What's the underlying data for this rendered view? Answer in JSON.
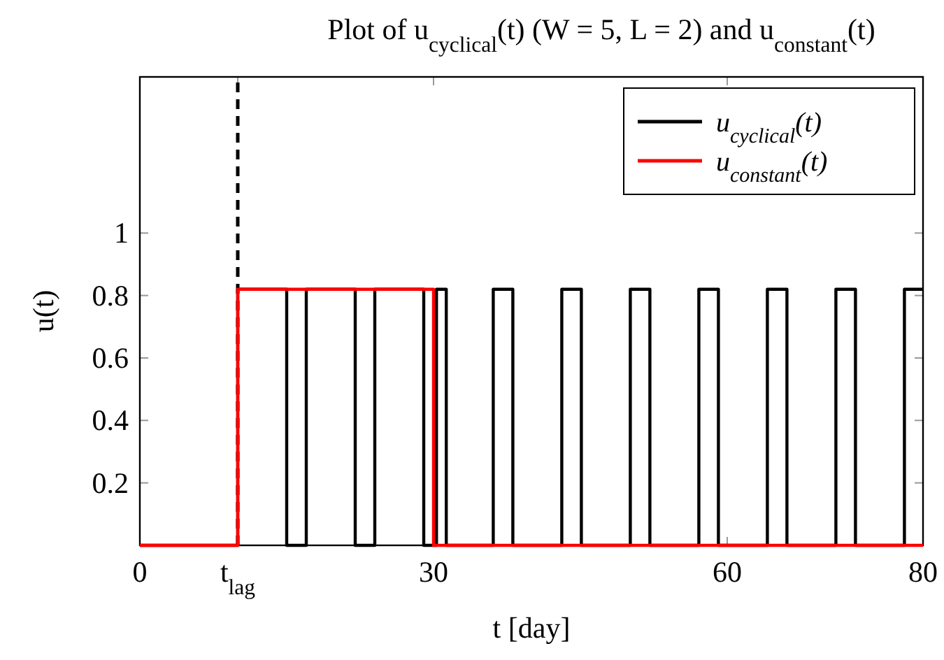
{
  "chart_data": {
    "type": "step",
    "title": "Plot of u$_{cyclical}$(t) (W = 5, L = 2) and u$_{constant}$(t)",
    "xlabel": "t [day]",
    "ylabel": "u(t)",
    "xlim": [
      0,
      80
    ],
    "ylim": [
      0,
      1.5
    ],
    "xticks": [
      0,
      {
        "value": 10,
        "label": "t$_{lag}$"
      },
      30,
      60,
      80
    ],
    "yticks": [
      0.2,
      0.4,
      0.6,
      0.8,
      1
    ],
    "series": [
      {
        "name": "u$_{cyclical}$(t)",
        "color": "#000000",
        "x": [
          0,
          10,
          15,
          17,
          22,
          24,
          29,
          30.3,
          31.3,
          36.1,
          38.1,
          43.1,
          45.1,
          50.1,
          52.1,
          57.1,
          59.1,
          64.1,
          66.1,
          71.1,
          73.1,
          78.1,
          80
        ],
        "values": [
          0,
          0.82,
          0,
          0.82,
          0,
          0.82,
          0,
          0.82,
          0,
          0.82,
          0,
          0.82,
          0,
          0.82,
          0,
          0.82,
          0,
          0.82,
          0,
          0.82,
          0,
          0.82,
          0.82
        ]
      },
      {
        "name": "u$_{constant}$(t)",
        "color": "#ff0000",
        "x": [
          0,
          10,
          30,
          80
        ],
        "values": [
          0,
          0.82,
          0,
          0
        ]
      }
    ],
    "ref_lines": [
      {
        "axis": "x",
        "value": 10,
        "color": "#000000",
        "line_style": "dashed"
      }
    ],
    "legend": "top right",
    "grid": false
  }
}
